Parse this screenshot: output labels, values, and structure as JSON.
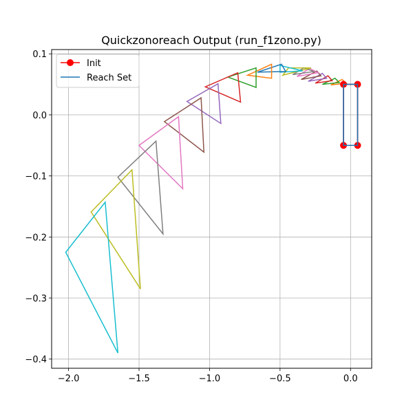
{
  "chart_data": {
    "type": "line",
    "title": "Quickzonoreach Output (run_f1zono.py)",
    "xlabel": "",
    "ylabel": "",
    "xlim": [
      -2.12,
      0.15
    ],
    "ylim": [
      -0.415,
      0.107
    ],
    "xticks": [
      -2.0,
      -1.5,
      -1.0,
      -0.5,
      0.0
    ],
    "xtick_labels": [
      "−2.0",
      "−1.5",
      "−1.0",
      "−0.5",
      "0.0"
    ],
    "yticks": [
      -0.4,
      -0.3,
      -0.2,
      -0.1,
      0.0,
      0.1
    ],
    "ytick_labels": [
      "−0.4",
      "−0.3",
      "−0.2",
      "−0.1",
      "0.0",
      "0.1"
    ],
    "grid": true,
    "legend": {
      "location": "upper-left",
      "entries": [
        {
          "label": "Init",
          "color": "#ff0000",
          "marker": "circle"
        },
        {
          "label": "Reach Set",
          "color": "#1f77b4",
          "marker": "none"
        }
      ]
    },
    "init": {
      "color": "#ff0000",
      "points": [
        [
          -0.05,
          -0.05
        ],
        [
          0.05,
          -0.05
        ],
        [
          0.05,
          0.05
        ],
        [
          -0.05,
          0.05
        ]
      ]
    },
    "reach_sets": [
      {
        "color": "#1f77b4",
        "points": [
          [
            -0.05,
            -0.05
          ],
          [
            0.05,
            -0.05
          ],
          [
            0.05,
            0.05
          ],
          [
            -0.05,
            0.05
          ]
        ]
      },
      {
        "color": "#ff7f0e",
        "points": [
          [
            -0.14,
            0.049
          ],
          [
            -0.03,
            0.052
          ],
          [
            -0.06,
            0.058
          ]
        ]
      },
      {
        "color": "#2ca02c",
        "points": [
          [
            -0.2,
            0.05
          ],
          [
            -0.08,
            0.053
          ],
          [
            -0.11,
            0.06
          ]
        ]
      },
      {
        "color": "#d62728",
        "points": [
          [
            -0.25,
            0.052
          ],
          [
            -0.13,
            0.056
          ],
          [
            -0.16,
            0.064
          ]
        ]
      },
      {
        "color": "#9467bd",
        "points": [
          [
            -0.3,
            0.055
          ],
          [
            -0.17,
            0.06
          ],
          [
            -0.2,
            0.068
          ]
        ]
      },
      {
        "color": "#8c564b",
        "points": [
          [
            -0.35,
            0.058
          ],
          [
            -0.21,
            0.064
          ],
          [
            -0.24,
            0.072
          ]
        ]
      },
      {
        "color": "#e377c2",
        "points": [
          [
            -0.38,
            0.063
          ],
          [
            -0.23,
            0.069
          ],
          [
            -0.29,
            0.076
          ]
        ]
      },
      {
        "color": "#7f7f7f",
        "points": [
          [
            -0.41,
            0.066
          ],
          [
            -0.26,
            0.071
          ],
          [
            -0.33,
            0.077
          ]
        ]
      },
      {
        "color": "#bcbd22",
        "points": [
          [
            -0.48,
            0.065
          ],
          [
            -0.28,
            0.077
          ],
          [
            -0.44,
            0.077
          ]
        ]
      },
      {
        "color": "#17becf",
        "points": [
          [
            -0.5,
            0.07
          ],
          [
            -0.34,
            0.072
          ],
          [
            -0.5,
            0.081
          ]
        ]
      },
      {
        "color": "#1f77b4",
        "points": [
          [
            -0.66,
            0.07
          ],
          [
            -0.46,
            0.071
          ],
          [
            -0.49,
            0.083
          ]
        ]
      },
      {
        "color": "#ff7f0e",
        "points": [
          [
            -0.73,
            0.065
          ],
          [
            -0.56,
            0.06
          ],
          [
            -0.56,
            0.083
          ]
        ]
      },
      {
        "color": "#2ca02c",
        "points": [
          [
            -0.87,
            0.062
          ],
          [
            -0.67,
            0.045
          ],
          [
            -0.67,
            0.077
          ]
        ]
      },
      {
        "color": "#d62728",
        "points": [
          [
            -1.03,
            0.046
          ],
          [
            -0.78,
            0.021
          ],
          [
            -0.8,
            0.069
          ]
        ]
      },
      {
        "color": "#9467bd",
        "points": [
          [
            -1.16,
            0.022
          ],
          [
            -0.92,
            -0.014
          ],
          [
            -0.94,
            0.051
          ]
        ]
      },
      {
        "color": "#8c564b",
        "points": [
          [
            -1.32,
            -0.011
          ],
          [
            -1.04,
            -0.061
          ],
          [
            -1.06,
            0.028
          ]
        ]
      },
      {
        "color": "#e377c2",
        "points": [
          [
            -1.5,
            -0.05
          ],
          [
            -1.19,
            -0.121
          ],
          [
            -1.22,
            -0.003
          ]
        ]
      },
      {
        "color": "#7f7f7f",
        "points": [
          [
            -1.65,
            -0.102
          ],
          [
            -1.33,
            -0.195
          ],
          [
            -1.38,
            -0.043
          ]
        ]
      },
      {
        "color": "#bcbd22",
        "points": [
          [
            -1.84,
            -0.159
          ],
          [
            -1.49,
            -0.285
          ],
          [
            -1.55,
            -0.09
          ]
        ]
      },
      {
        "color": "#17becf",
        "points": [
          [
            -2.02,
            -0.225
          ],
          [
            -1.65,
            -0.39
          ],
          [
            -1.74,
            -0.143
          ]
        ]
      }
    ]
  }
}
